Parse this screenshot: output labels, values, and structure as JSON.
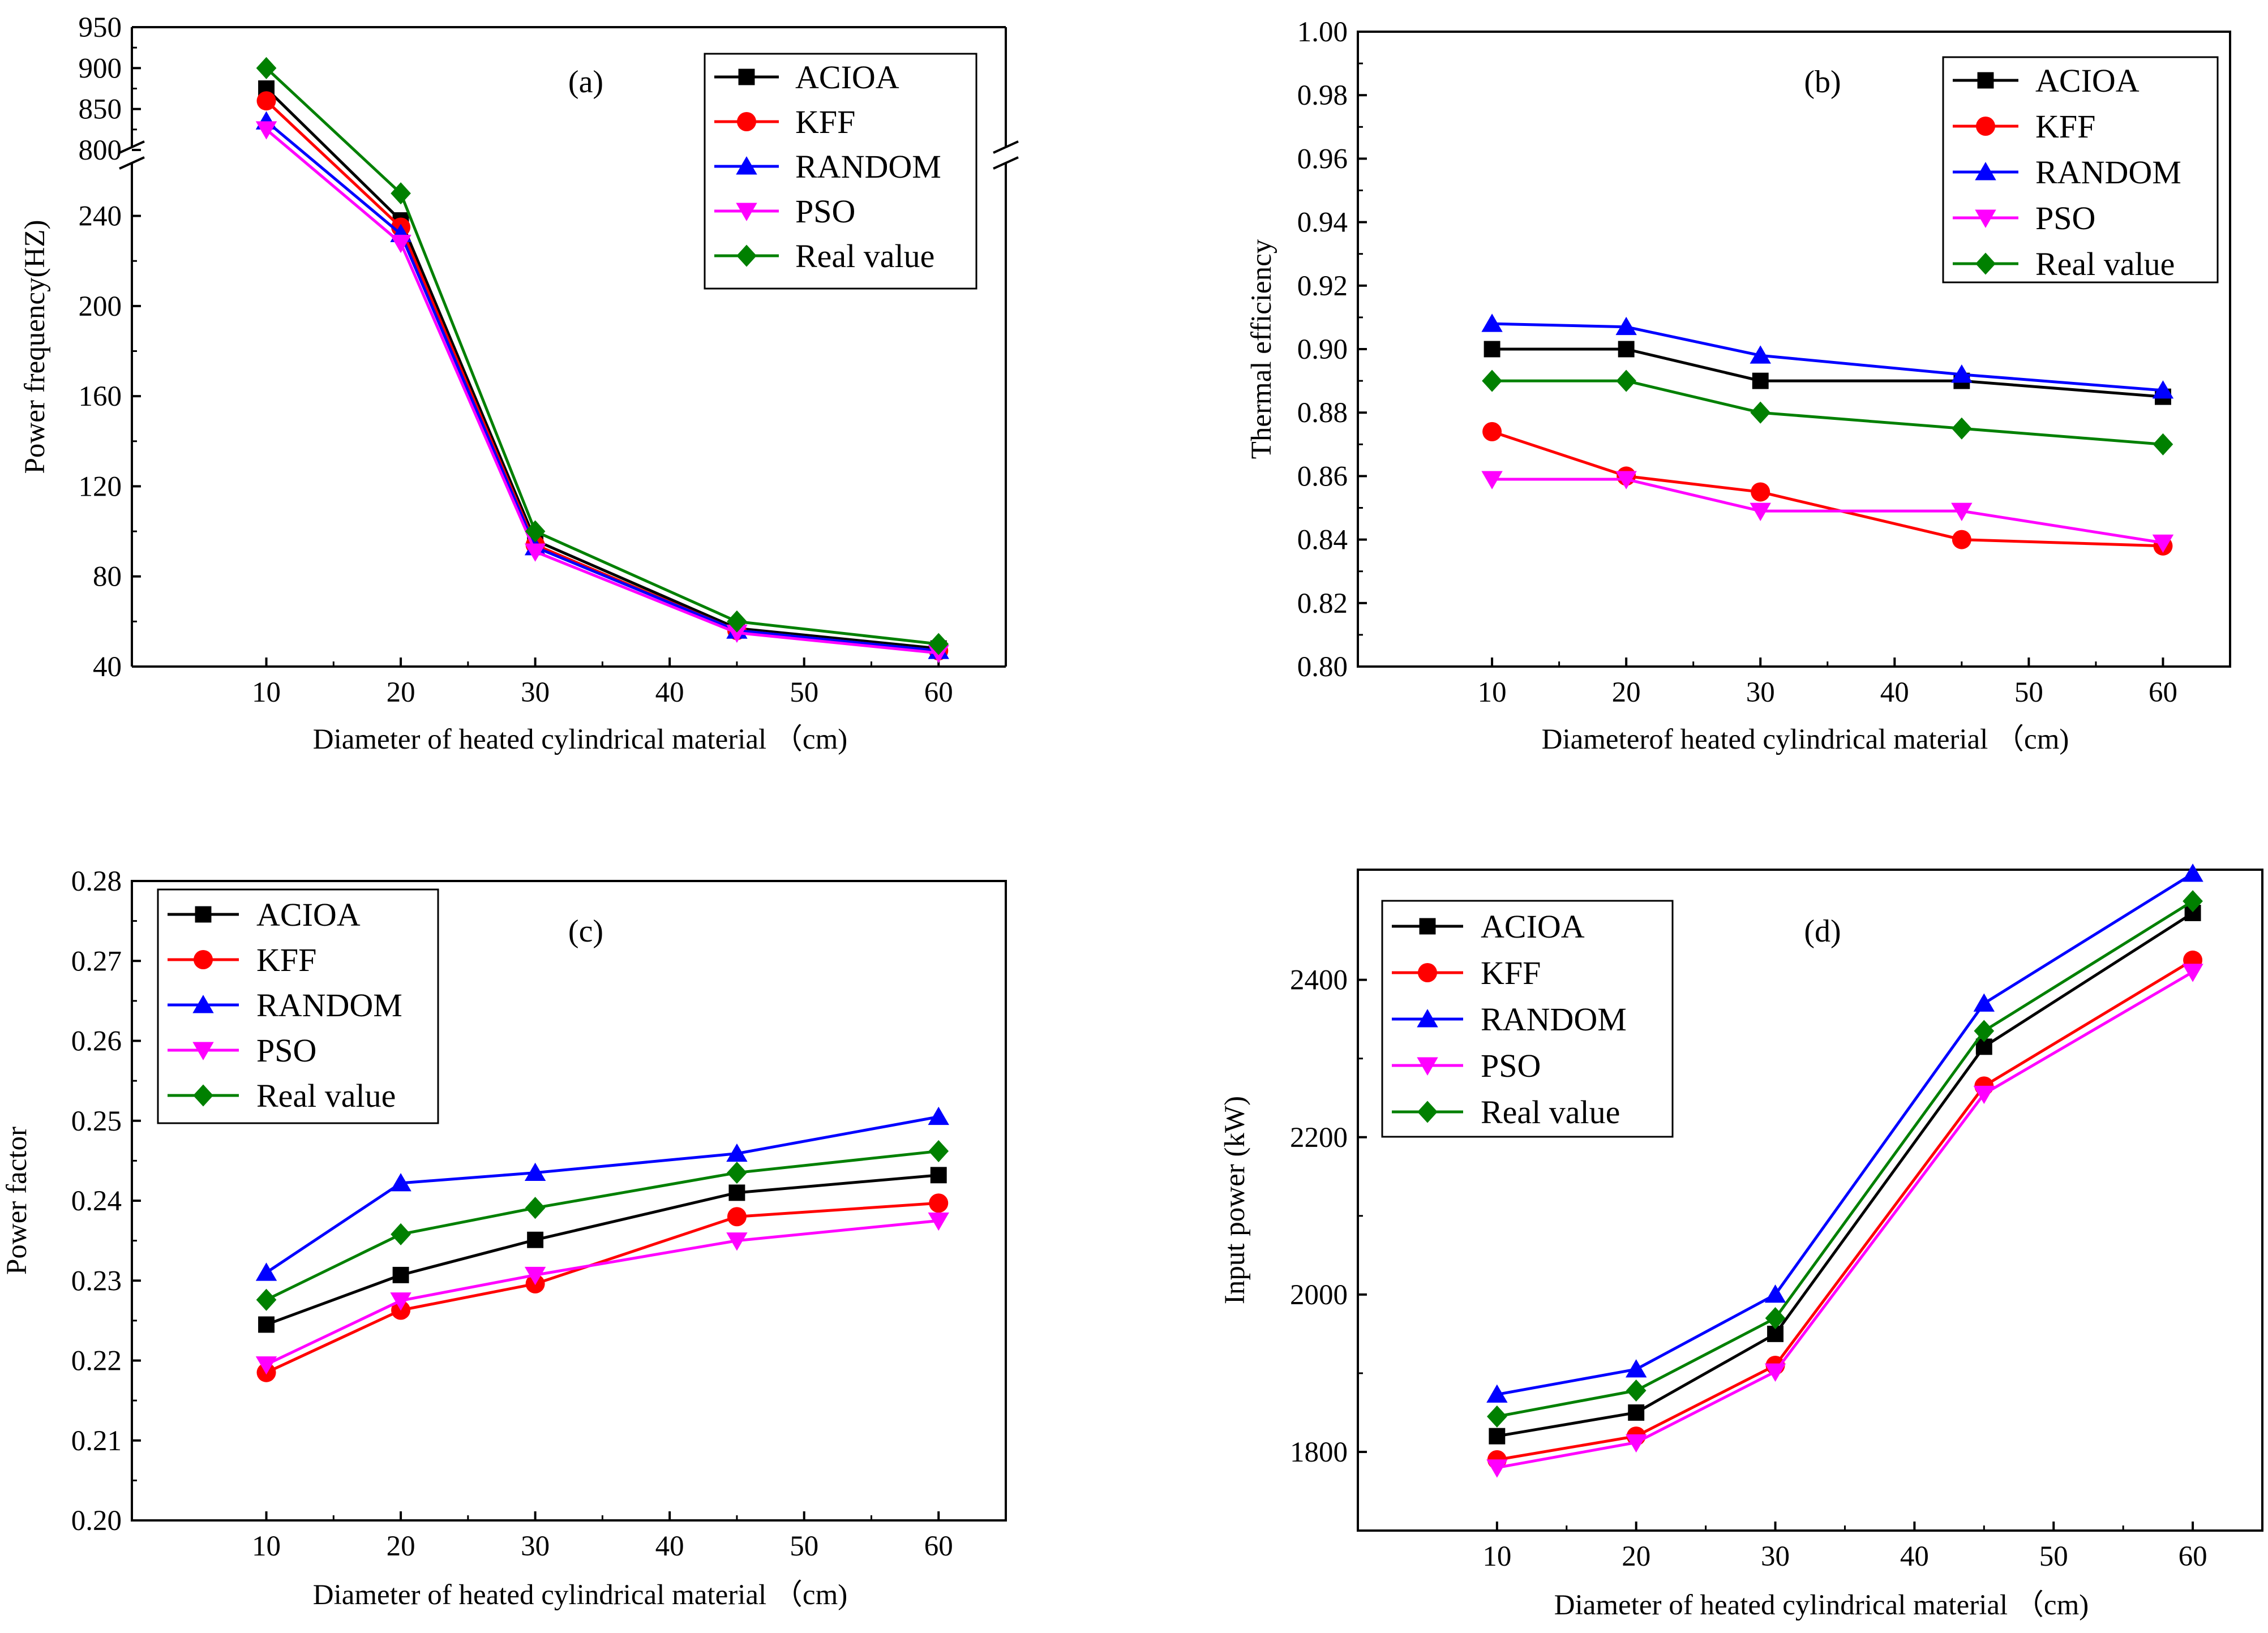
{
  "colors": {
    "ACIOA": "#000000",
    "KFF": "#ff0000",
    "RANDOM": "#0000ff",
    "PSO": "#ff00ff",
    "Real value": "#008000"
  },
  "chart_data": [
    {
      "type": "line",
      "panel": "(a)",
      "xlabel": "Diameter of heated cylindrical material （cm)",
      "ylabel": "Power frequency(HZ)",
      "x": [
        10,
        20,
        30,
        45,
        60
      ],
      "xlim": [
        0,
        65
      ],
      "xticks": [
        "10",
        "20",
        "30",
        "40",
        "50",
        "60"
      ],
      "ylim": [
        40,
        950
      ],
      "axis_break": {
        "lower": [
          40,
          265
        ],
        "upper": [
          800,
          950
        ]
      },
      "yticks": [
        "40",
        "80",
        "120",
        "160",
        "200",
        "240",
        "800",
        "850",
        "900",
        "950"
      ],
      "legend": [
        "ACIOA",
        "KFF",
        "RANDOM",
        "PSO",
        "Real value"
      ],
      "legend_position": "top-right",
      "series": [
        {
          "name": "ACIOA",
          "values": [
            875,
            238,
            96,
            57,
            48
          ]
        },
        {
          "name": "KFF",
          "values": [
            860,
            235,
            94,
            56,
            47
          ]
        },
        {
          "name": "RANDOM",
          "values": [
            835,
            232,
            93,
            56,
            47
          ]
        },
        {
          "name": "PSO",
          "values": [
            825,
            228,
            91,
            55,
            46
          ]
        },
        {
          "name": "Real value",
          "values": [
            900,
            250,
            100,
            60,
            50
          ]
        }
      ]
    },
    {
      "type": "line",
      "panel": "(b)",
      "xlabel": "Diameterof heated cylindrical material （cm)",
      "ylabel": "Thermal efficiency",
      "x": [
        10,
        20,
        30,
        45,
        60
      ],
      "xlim": [
        0,
        65
      ],
      "xticks": [
        "10",
        "20",
        "30",
        "40",
        "50",
        "60"
      ],
      "ylim": [
        0.8,
        1.0
      ],
      "yticks": [
        "0.80",
        "0.82",
        "0.84",
        "0.86",
        "0.88",
        "0.90",
        "0.92",
        "0.94",
        "0.96",
        "0.98",
        "1.00"
      ],
      "legend": [
        "ACIOA",
        "KFF",
        "RANDOM",
        "PSO",
        "Real value"
      ],
      "legend_position": "top-right",
      "series": [
        {
          "name": "ACIOA",
          "values": [
            0.9,
            0.9,
            0.89,
            0.89,
            0.885
          ]
        },
        {
          "name": "KFF",
          "values": [
            0.874,
            0.86,
            0.855,
            0.84,
            0.838
          ]
        },
        {
          "name": "RANDOM",
          "values": [
            0.908,
            0.907,
            0.898,
            0.892,
            0.887
          ]
        },
        {
          "name": "PSO",
          "values": [
            0.859,
            0.859,
            0.849,
            0.849,
            0.839
          ]
        },
        {
          "name": "Real value",
          "values": [
            0.89,
            0.89,
            0.88,
            0.875,
            0.87
          ]
        }
      ]
    },
    {
      "type": "line",
      "panel": "(c)",
      "xlabel": "Diameter of heated cylindrical material （cm)",
      "ylabel": "Power factor",
      "x": [
        10,
        20,
        30,
        45,
        60
      ],
      "xlim": [
        0,
        65
      ],
      "xticks": [
        "10",
        "20",
        "30",
        "40",
        "50",
        "60"
      ],
      "ylim": [
        0.2,
        0.28
      ],
      "yticks": [
        "0.20",
        "0.21",
        "0.22",
        "0.23",
        "0.24",
        "0.25",
        "0.26",
        "0.27",
        "0.28"
      ],
      "legend": [
        "ACIOA",
        "KFF",
        "RANDOM",
        "PSO",
        "Real value"
      ],
      "legend_position": "top-left",
      "series": [
        {
          "name": "ACIOA",
          "values": [
            0.2245,
            0.2307,
            0.2351,
            0.241,
            0.2432
          ]
        },
        {
          "name": "KFF",
          "values": [
            0.2185,
            0.2263,
            0.2296,
            0.238,
            0.2397
          ]
        },
        {
          "name": "RANDOM",
          "values": [
            0.231,
            0.2422,
            0.2435,
            0.2459,
            0.2505
          ]
        },
        {
          "name": "PSO",
          "values": [
            0.2195,
            0.2275,
            0.2307,
            0.235,
            0.2375
          ]
        },
        {
          "name": "Real value",
          "values": [
            0.2276,
            0.2358,
            0.2391,
            0.2435,
            0.2462
          ]
        }
      ]
    },
    {
      "type": "line",
      "panel": "(d)",
      "xlabel": "Diameter of heated cylindrical material （cm)",
      "ylabel": "Input power (kW)",
      "x": [
        10,
        20,
        30,
        45,
        60
      ],
      "xlim": [
        0,
        65
      ],
      "xticks": [
        "10",
        "20",
        "30",
        "40",
        "50",
        "60"
      ],
      "ylim": [
        1700,
        2540
      ],
      "yticks": [
        "1800",
        "2000",
        "2200",
        "2400"
      ],
      "ytick_values": [
        1800,
        2000,
        2200,
        2400
      ],
      "legend": [
        "ACIOA",
        "KFF",
        "RANDOM",
        "PSO",
        "Real value"
      ],
      "legend_position": "top-left",
      "series": [
        {
          "name": "ACIOA",
          "values": [
            1820,
            1850,
            1950,
            2315,
            2485
          ]
        },
        {
          "name": "KFF",
          "values": [
            1790,
            1820,
            1910,
            2265,
            2425
          ]
        },
        {
          "name": "RANDOM",
          "values": [
            1873,
            1905,
            2000,
            2370,
            2535
          ]
        },
        {
          "name": "PSO",
          "values": [
            1780,
            1812,
            1902,
            2255,
            2410
          ]
        },
        {
          "name": "Real value",
          "values": [
            1845,
            1878,
            1970,
            2335,
            2500
          ]
        }
      ]
    }
  ]
}
